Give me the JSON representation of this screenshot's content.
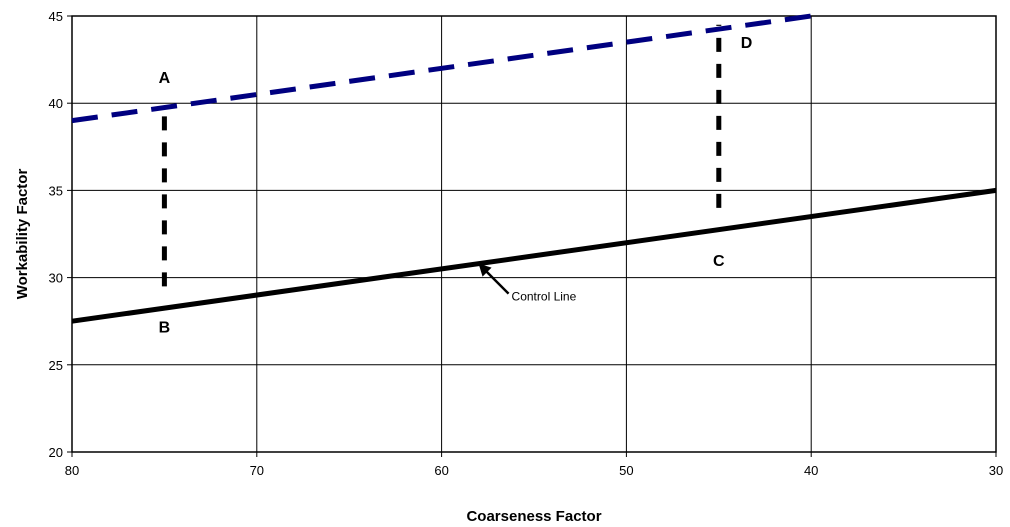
{
  "chart_data": {
    "type": "line",
    "title": "",
    "xlabel": "Coarseness Factor",
    "ylabel": "Workability Factor",
    "xlim": [
      80,
      30
    ],
    "x_reversed": true,
    "ylim": [
      20,
      45
    ],
    "x_ticks": [
      "80",
      "70",
      "60",
      "50",
      "40",
      "30"
    ],
    "y_ticks": [
      "20",
      "25",
      "30",
      "35",
      "40",
      "45"
    ],
    "grid": true,
    "legend": "none",
    "series": [
      {
        "name": "Control Line",
        "x": [
          80,
          30
        ],
        "y": [
          27.5,
          35
        ],
        "color": "#000000",
        "style": "solid"
      },
      {
        "x": [
          80,
          40
        ],
        "y": [
          39,
          45
        ],
        "color": "#000080",
        "style": "dashed"
      },
      {
        "x": [
          75,
          75
        ],
        "y": [
          29.5,
          39.7
        ],
        "color": "#000000",
        "style": "dashed"
      },
      {
        "x": [
          45,
          45
        ],
        "y": [
          34,
          44.5
        ],
        "color": "#000000",
        "style": "dashed"
      }
    ],
    "point_labels": [
      {
        "text": "A",
        "x": 75,
        "y": 41.5
      },
      {
        "text": "B",
        "x": 75,
        "y": 27.2
      },
      {
        "text": "C",
        "x": 45,
        "y": 31
      },
      {
        "text": "D",
        "x": 43.5,
        "y": 43.5
      }
    ],
    "annotation": {
      "text": "Control Line",
      "arrow_to_x": 58,
      "arrow_to_y": 30.8
    }
  }
}
